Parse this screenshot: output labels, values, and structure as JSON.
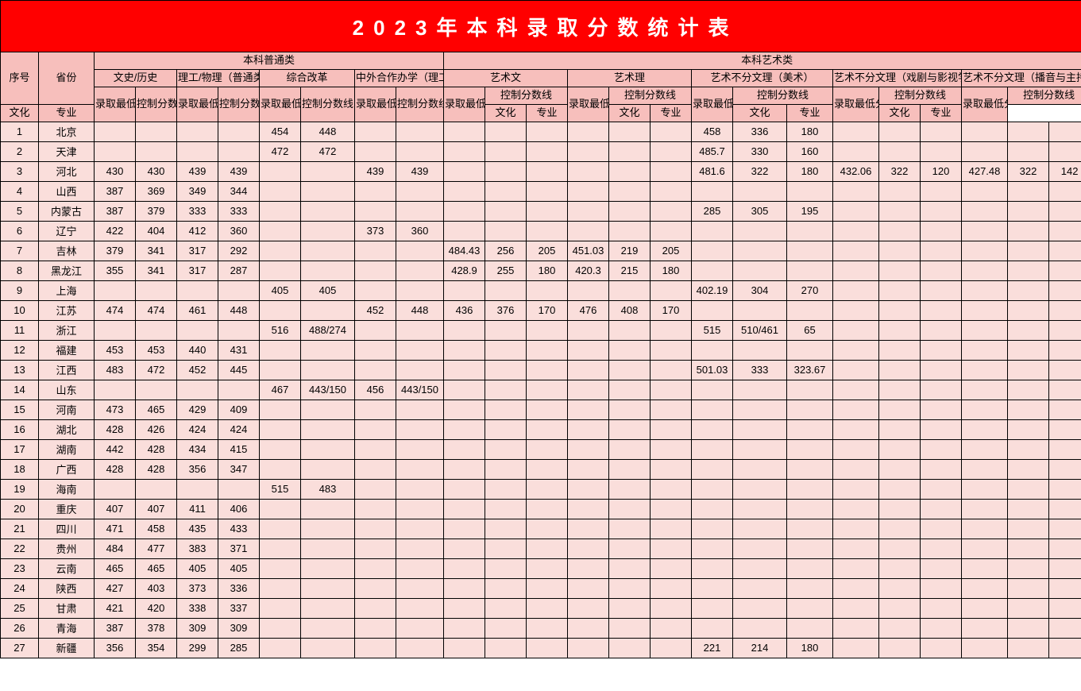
{
  "title": "2023年本科录取分数统计表",
  "colors": {
    "title_bg": "#ff0000",
    "title_fg": "#ffffff",
    "header_bg": "#f7bfbc",
    "data_bg": "#fadedb",
    "border": "#000000"
  },
  "headers": {
    "seq": "序号",
    "province": "省份",
    "group_putong": "本科普通类",
    "group_yishu": "本科艺术类",
    "wenshi": "文史/历史",
    "ligong": "理工/物理（普通类）",
    "zonghe": "综合改革",
    "zhongwai": "中外合作办学（理工/物理）",
    "yishuwen": "艺术文",
    "yishuli": "艺术理",
    "bufen_meishu": "艺术不分文理（美术）",
    "bufen_xiju": "艺术不分文理（戏剧与影视学类）",
    "bufen_boyin": "艺术不分文理（播音与主持艺术）",
    "luqu": "录取最低分",
    "kongzhi": "控制分数线",
    "wenhua": "文化",
    "zhuanye": "专业"
  },
  "rows": [
    {
      "seq": 1,
      "prov": "北京",
      "cells": [
        "",
        "",
        "",
        "",
        "454",
        "448",
        "",
        "",
        "",
        "",
        "",
        "",
        "",
        "",
        "458",
        "336",
        "180",
        "",
        "",
        "",
        "",
        "",
        ""
      ]
    },
    {
      "seq": 2,
      "prov": "天津",
      "cells": [
        "",
        "",
        "",
        "",
        "472",
        "472",
        "",
        "",
        "",
        "",
        "",
        "",
        "",
        "",
        "485.7",
        "330",
        "160",
        "",
        "",
        "",
        "",
        "",
        ""
      ]
    },
    {
      "seq": 3,
      "prov": "河北",
      "cells": [
        "430",
        "430",
        "439",
        "439",
        "",
        "",
        "439",
        "439",
        "",
        "",
        "",
        "",
        "",
        "",
        "481.6",
        "322",
        "180",
        "432.06",
        "322",
        "120",
        "427.48",
        "322",
        "142"
      ]
    },
    {
      "seq": 4,
      "prov": "山西",
      "cells": [
        "387",
        "369",
        "349",
        "344",
        "",
        "",
        "",
        "",
        "",
        "",
        "",
        "",
        "",
        "",
        "",
        "",
        "",
        "",
        "",
        "",
        "",
        "",
        ""
      ]
    },
    {
      "seq": 5,
      "prov": "内蒙古",
      "cells": [
        "387",
        "379",
        "333",
        "333",
        "",
        "",
        "",
        "",
        "",
        "",
        "",
        "",
        "",
        "",
        "285",
        "305",
        "195",
        "",
        "",
        "",
        "",
        "",
        ""
      ]
    },
    {
      "seq": 6,
      "prov": "辽宁",
      "cells": [
        "422",
        "404",
        "412",
        "360",
        "",
        "",
        "373",
        "360",
        "",
        "",
        "",
        "",
        "",
        "",
        "",
        "",
        "",
        "",
        "",
        "",
        "",
        "",
        ""
      ]
    },
    {
      "seq": 7,
      "prov": "吉林",
      "cells": [
        "379",
        "341",
        "317",
        "292",
        "",
        "",
        "",
        "",
        "484.43",
        "256",
        "205",
        "451.03",
        "219",
        "205",
        "",
        "",
        "",
        "",
        "",
        "",
        "",
        "",
        ""
      ]
    },
    {
      "seq": 8,
      "prov": "黑龙江",
      "cells": [
        "355",
        "341",
        "317",
        "287",
        "",
        "",
        "",
        "",
        "428.9",
        "255",
        "180",
        "420.3",
        "215",
        "180",
        "",
        "",
        "",
        "",
        "",
        "",
        "",
        "",
        ""
      ]
    },
    {
      "seq": 9,
      "prov": "上海",
      "cells": [
        "",
        "",
        "",
        "",
        "405",
        "405",
        "",
        "",
        "",
        "",
        "",
        "",
        "",
        "",
        "402.19",
        "304",
        "270",
        "",
        "",
        "",
        "",
        "",
        ""
      ]
    },
    {
      "seq": 10,
      "prov": "江苏",
      "cells": [
        "474",
        "474",
        "461",
        "448",
        "",
        "",
        "452",
        "448",
        "436",
        "376",
        "170",
        "476",
        "408",
        "170",
        "",
        "",
        "",
        "",
        "",
        "",
        "",
        "",
        ""
      ]
    },
    {
      "seq": 11,
      "prov": "浙江",
      "cells": [
        "",
        "",
        "",
        "",
        "516",
        "488/274",
        "",
        "",
        "",
        "",
        "",
        "",
        "",
        "",
        "515",
        "510/461",
        "65",
        "",
        "",
        "",
        "",
        "",
        ""
      ]
    },
    {
      "seq": 12,
      "prov": "福建",
      "cells": [
        "453",
        "453",
        "440",
        "431",
        "",
        "",
        "",
        "",
        "",
        "",
        "",
        "",
        "",
        "",
        "",
        "",
        "",
        "",
        "",
        "",
        "",
        "",
        ""
      ]
    },
    {
      "seq": 13,
      "prov": "江西",
      "cells": [
        "483",
        "472",
        "452",
        "445",
        "",
        "",
        "",
        "",
        "",
        "",
        "",
        "",
        "",
        "",
        "501.03",
        "333",
        "323.67",
        "",
        "",
        "",
        "",
        "",
        ""
      ]
    },
    {
      "seq": 14,
      "prov": "山东",
      "cells": [
        "",
        "",
        "",
        "",
        "467",
        "443/150",
        "456",
        "443/150",
        "",
        "",
        "",
        "",
        "",
        "",
        "",
        "",
        "",
        "",
        "",
        "",
        "",
        "",
        ""
      ]
    },
    {
      "seq": 15,
      "prov": "河南",
      "cells": [
        "473",
        "465",
        "429",
        "409",
        "",
        "",
        "",
        "",
        "",
        "",
        "",
        "",
        "",
        "",
        "",
        "",
        "",
        "",
        "",
        "",
        "",
        "",
        ""
      ]
    },
    {
      "seq": 16,
      "prov": "湖北",
      "cells": [
        "428",
        "426",
        "424",
        "424",
        "",
        "",
        "",
        "",
        "",
        "",
        "",
        "",
        "",
        "",
        "",
        "",
        "",
        "",
        "",
        "",
        "",
        "",
        ""
      ]
    },
    {
      "seq": 17,
      "prov": "湖南",
      "cells": [
        "442",
        "428",
        "434",
        "415",
        "",
        "",
        "",
        "",
        "",
        "",
        "",
        "",
        "",
        "",
        "",
        "",
        "",
        "",
        "",
        "",
        "",
        "",
        ""
      ]
    },
    {
      "seq": 18,
      "prov": "广西",
      "cells": [
        "428",
        "428",
        "356",
        "347",
        "",
        "",
        "",
        "",
        "",
        "",
        "",
        "",
        "",
        "",
        "",
        "",
        "",
        "",
        "",
        "",
        "",
        "",
        ""
      ]
    },
    {
      "seq": 19,
      "prov": "海南",
      "cells": [
        "",
        "",
        "",
        "",
        "515",
        "483",
        "",
        "",
        "",
        "",
        "",
        "",
        "",
        "",
        "",
        "",
        "",
        "",
        "",
        "",
        "",
        "",
        ""
      ]
    },
    {
      "seq": 20,
      "prov": "重庆",
      "cells": [
        "407",
        "407",
        "411",
        "406",
        "",
        "",
        "",
        "",
        "",
        "",
        "",
        "",
        "",
        "",
        "",
        "",
        "",
        "",
        "",
        "",
        "",
        "",
        ""
      ]
    },
    {
      "seq": 21,
      "prov": "四川",
      "cells": [
        "471",
        "458",
        "435",
        "433",
        "",
        "",
        "",
        "",
        "",
        "",
        "",
        "",
        "",
        "",
        "",
        "",
        "",
        "",
        "",
        "",
        "",
        "",
        ""
      ]
    },
    {
      "seq": 22,
      "prov": "贵州",
      "cells": [
        "484",
        "477",
        "383",
        "371",
        "",
        "",
        "",
        "",
        "",
        "",
        "",
        "",
        "",
        "",
        "",
        "",
        "",
        "",
        "",
        "",
        "",
        "",
        ""
      ]
    },
    {
      "seq": 23,
      "prov": "云南",
      "cells": [
        "465",
        "465",
        "405",
        "405",
        "",
        "",
        "",
        "",
        "",
        "",
        "",
        "",
        "",
        "",
        "",
        "",
        "",
        "",
        "",
        "",
        "",
        "",
        ""
      ]
    },
    {
      "seq": 24,
      "prov": "陕西",
      "cells": [
        "427",
        "403",
        "373",
        "336",
        "",
        "",
        "",
        "",
        "",
        "",
        "",
        "",
        "",
        "",
        "",
        "",
        "",
        "",
        "",
        "",
        "",
        "",
        ""
      ]
    },
    {
      "seq": 25,
      "prov": "甘肃",
      "cells": [
        "421",
        "420",
        "338",
        "337",
        "",
        "",
        "",
        "",
        "",
        "",
        "",
        "",
        "",
        "",
        "",
        "",
        "",
        "",
        "",
        "",
        "",
        "",
        ""
      ]
    },
    {
      "seq": 26,
      "prov": "青海",
      "cells": [
        "387",
        "378",
        "309",
        "309",
        "",
        "",
        "",
        "",
        "",
        "",
        "",
        "",
        "",
        "",
        "",
        "",
        "",
        "",
        "",
        "",
        "",
        "",
        ""
      ]
    },
    {
      "seq": 27,
      "prov": "新疆",
      "cells": [
        "356",
        "354",
        "299",
        "285",
        "",
        "",
        "",
        "",
        "",
        "",
        "",
        "",
        "",
        "",
        "221",
        "214",
        "180",
        "",
        "",
        "",
        "",
        "",
        ""
      ]
    }
  ]
}
